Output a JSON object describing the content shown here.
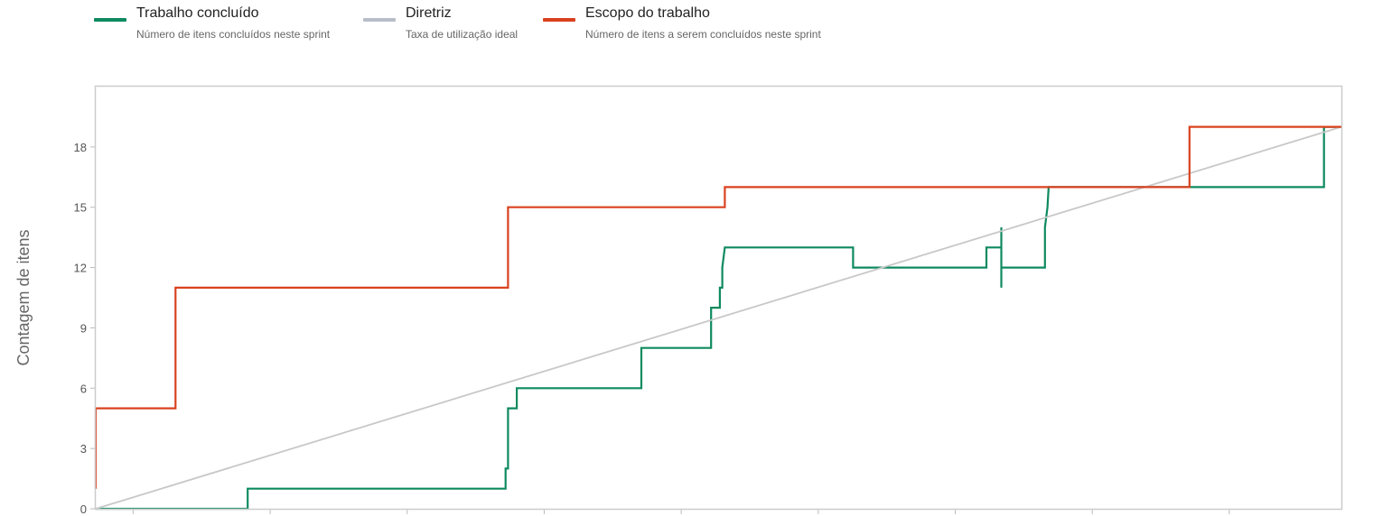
{
  "legend": [
    {
      "title": "Trabalho concluído",
      "desc": "Número de itens concluídos neste sprint",
      "color": "#0e8a5f",
      "icon": "line-swatch"
    },
    {
      "title": "Diretriz",
      "desc": "Taxa de utilização ideal",
      "color": "#b8bec8",
      "icon": "line-swatch"
    },
    {
      "title": "Escopo do trabalho",
      "desc": "Número de itens a serem concluídos neste sprint",
      "color": "#d9421f",
      "icon": "line-swatch"
    }
  ],
  "chart_data": {
    "type": "line",
    "title": "",
    "xlabel": "",
    "ylabel": "Contagem de itens",
    "xlim": [
      0,
      100
    ],
    "ylim": [
      0,
      21
    ],
    "yticks": [
      0,
      3,
      6,
      9,
      12,
      15,
      18
    ],
    "grid": false,
    "legend_position": "top-left",
    "series": [
      {
        "name": "Trabalho concluído",
        "color": "#0e8a5f",
        "step": true,
        "points": [
          [
            0,
            0
          ],
          [
            12.2,
            0
          ],
          [
            12.2,
            1
          ],
          [
            32.9,
            1
          ],
          [
            32.9,
            2
          ],
          [
            33.1,
            2
          ],
          [
            33.1,
            5
          ],
          [
            33.8,
            5
          ],
          [
            33.8,
            6
          ],
          [
            43.8,
            6
          ],
          [
            43.8,
            8
          ],
          [
            49.4,
            8
          ],
          [
            49.4,
            10
          ],
          [
            50.1,
            10
          ],
          [
            50.1,
            11
          ],
          [
            50.3,
            11
          ],
          [
            50.3,
            12
          ],
          [
            50.5,
            13
          ],
          [
            60.8,
            13
          ],
          [
            60.8,
            12
          ],
          [
            71.5,
            12
          ],
          [
            71.5,
            13
          ],
          [
            72.7,
            13
          ],
          [
            72.7,
            14
          ],
          [
            72.7,
            11
          ],
          [
            72.7,
            12
          ],
          [
            76.2,
            12
          ],
          [
            76.2,
            14
          ],
          [
            76.4,
            15
          ],
          [
            76.5,
            16
          ],
          [
            98.6,
            16
          ],
          [
            98.6,
            19
          ],
          [
            100,
            19
          ]
        ]
      },
      {
        "name": "Diretriz",
        "color": "#c8c8c8",
        "step": false,
        "points": [
          [
            0,
            0
          ],
          [
            100,
            19
          ]
        ]
      },
      {
        "name": "Escopo do trabalho",
        "color": "#d9421f",
        "step": true,
        "points": [
          [
            0,
            1
          ],
          [
            0,
            5
          ],
          [
            6.4,
            5
          ],
          [
            6.4,
            11
          ],
          [
            33.1,
            11
          ],
          [
            33.1,
            15
          ],
          [
            50.5,
            15
          ],
          [
            50.5,
            16
          ],
          [
            87.8,
            16
          ],
          [
            87.8,
            19
          ],
          [
            100,
            19
          ]
        ]
      }
    ]
  }
}
